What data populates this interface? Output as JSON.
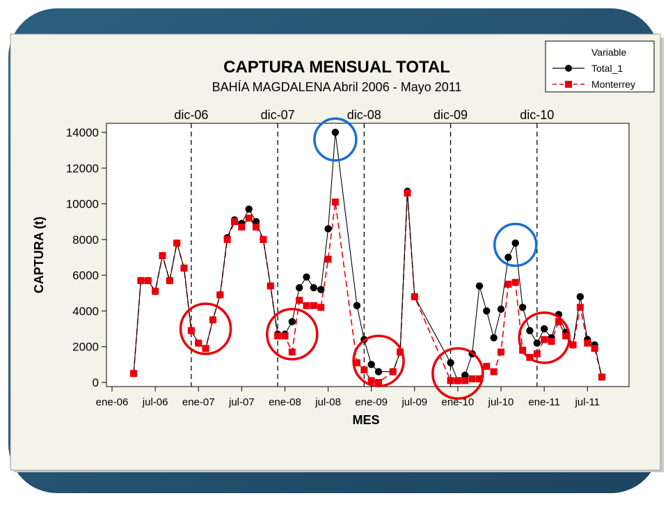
{
  "chart_data": {
    "type": "line",
    "title": "CAPTURA MENSUAL TOTAL",
    "subtitle": "BAHÍA MAGDALENA Abril 2006 - Mayo 2011",
    "xlabel": "MES",
    "ylabel": "CAPTURA (t)",
    "x_range": [
      "2006-01",
      "2011-12"
    ],
    "ylim": [
      0,
      14000
    ],
    "y_ticks": [
      "0",
      "2000",
      "4000",
      "6000",
      "8000",
      "10000",
      "12000",
      "14000"
    ],
    "x_ticks": [
      {
        "label": "ene-06",
        "x": "2006-01"
      },
      {
        "label": "jul-06",
        "x": "2006-07"
      },
      {
        "label": "ene-07",
        "x": "2007-01"
      },
      {
        "label": "jul-07",
        "x": "2007-07"
      },
      {
        "label": "ene-08",
        "x": "2008-01"
      },
      {
        "label": "jul-08",
        "x": "2008-07"
      },
      {
        "label": "ene-09",
        "x": "2009-01"
      },
      {
        "label": "jul-09",
        "x": "2009-07"
      },
      {
        "label": "ene-10",
        "x": "2010-01"
      },
      {
        "label": "jul-10",
        "x": "2010-07"
      },
      {
        "label": "ene-11",
        "x": "2011-01"
      },
      {
        "label": "jul-11",
        "x": "2011-07"
      }
    ],
    "reference_lines": [
      {
        "label": "dic-06",
        "x": "2006-12"
      },
      {
        "label": "dic-07",
        "x": "2007-12"
      },
      {
        "label": "dic-08",
        "x": "2008-12"
      },
      {
        "label": "dic-09",
        "x": "2009-12"
      },
      {
        "label": "dic-10",
        "x": "2010-12"
      }
    ],
    "legend_title": "Variable",
    "legend_position": "top-right",
    "grid": false,
    "series": [
      {
        "name": "Total_1",
        "color": "#000000",
        "marker": "circle",
        "line_style": "solid",
        "points": [
          [
            "2006-04",
            500
          ],
          [
            "2006-05",
            5700
          ],
          [
            "2006-06",
            5700
          ],
          [
            "2006-07",
            5100
          ],
          [
            "2006-08",
            7100
          ],
          [
            "2006-09",
            5700
          ],
          [
            "2006-10",
            7800
          ],
          [
            "2006-11",
            6400
          ],
          [
            "2006-12",
            2900
          ],
          [
            "2007-01",
            2200
          ],
          [
            "2007-02",
            1900
          ],
          [
            "2007-03",
            3500
          ],
          [
            "2007-04",
            4900
          ],
          [
            "2007-05",
            8100
          ],
          [
            "2007-06",
            9100
          ],
          [
            "2007-07",
            8900
          ],
          [
            "2007-08",
            9700
          ],
          [
            "2007-09",
            9000
          ],
          [
            "2007-10",
            8000
          ],
          [
            "2007-11",
            5400
          ],
          [
            "2007-12",
            2700
          ],
          [
            "2008-01",
            2700
          ],
          [
            "2008-02",
            3400
          ],
          [
            "2008-03",
            5300
          ],
          [
            "2008-04",
            5900
          ],
          [
            "2008-05",
            5300
          ],
          [
            "2008-06",
            5200
          ],
          [
            "2008-07",
            8600
          ],
          [
            "2008-08",
            14000
          ],
          [
            "2008-11",
            4300
          ],
          [
            "2008-12",
            2400
          ],
          [
            "2009-01",
            1000
          ],
          [
            "2009-02",
            600
          ],
          [
            "2009-04",
            600
          ],
          [
            "2009-05",
            1700
          ],
          [
            "2009-06",
            10700
          ],
          [
            "2009-07",
            4800
          ],
          [
            "2009-12",
            1100
          ],
          [
            "2010-01",
            100
          ],
          [
            "2010-02",
            400
          ],
          [
            "2010-03",
            1600
          ],
          [
            "2010-04",
            5400
          ],
          [
            "2010-05",
            4000
          ],
          [
            "2010-06",
            2500
          ],
          [
            "2010-07",
            4100
          ],
          [
            "2010-08",
            7000
          ],
          [
            "2010-09",
            7800
          ],
          [
            "2010-10",
            4200
          ],
          [
            "2010-11",
            2900
          ],
          [
            "2010-12",
            2200
          ],
          [
            "2011-01",
            3000
          ],
          [
            "2011-02",
            2500
          ],
          [
            "2011-03",
            3800
          ],
          [
            "2011-04",
            2800
          ],
          [
            "2011-05",
            2100
          ],
          [
            "2011-06",
            4800
          ],
          [
            "2011-07",
            2400
          ],
          [
            "2011-08",
            2100
          ],
          [
            "2011-09",
            300
          ]
        ]
      },
      {
        "name": "Monterrey",
        "color": "#e8000b",
        "marker": "square",
        "line_style": "dashed",
        "points": [
          [
            "2006-04",
            500
          ],
          [
            "2006-05",
            5700
          ],
          [
            "2006-06",
            5700
          ],
          [
            "2006-07",
            5100
          ],
          [
            "2006-08",
            7100
          ],
          [
            "2006-09",
            5700
          ],
          [
            "2006-10",
            7800
          ],
          [
            "2006-11",
            6400
          ],
          [
            "2006-12",
            2900
          ],
          [
            "2007-01",
            2200
          ],
          [
            "2007-02",
            1900
          ],
          [
            "2007-03",
            3500
          ],
          [
            "2007-04",
            4900
          ],
          [
            "2007-05",
            8000
          ],
          [
            "2007-06",
            9000
          ],
          [
            "2007-07",
            8700
          ],
          [
            "2007-08",
            9200
          ],
          [
            "2007-09",
            8700
          ],
          [
            "2007-10",
            8000
          ],
          [
            "2007-11",
            5400
          ],
          [
            "2007-12",
            2600
          ],
          [
            "2008-01",
            2600
          ],
          [
            "2008-02",
            1700
          ],
          [
            "2008-03",
            4600
          ],
          [
            "2008-04",
            4300
          ],
          [
            "2008-05",
            4300
          ],
          [
            "2008-06",
            4200
          ],
          [
            "2008-07",
            6900
          ],
          [
            "2008-08",
            10100
          ],
          [
            "2008-11",
            1100
          ],
          [
            "2008-12",
            700
          ],
          [
            "2009-01",
            100
          ],
          [
            "2009-02",
            0
          ],
          [
            "2009-04",
            600
          ],
          [
            "2009-05",
            1700
          ],
          [
            "2009-06",
            10600
          ],
          [
            "2009-07",
            4800
          ],
          [
            "2009-12",
            100
          ],
          [
            "2010-01",
            100
          ],
          [
            "2010-02",
            100
          ],
          [
            "2010-03",
            200
          ],
          [
            "2010-04",
            200
          ],
          [
            "2010-05",
            900
          ],
          [
            "2010-06",
            600
          ],
          [
            "2010-07",
            1700
          ],
          [
            "2010-08",
            5500
          ],
          [
            "2010-09",
            5600
          ],
          [
            "2010-10",
            1800
          ],
          [
            "2010-11",
            1400
          ],
          [
            "2010-12",
            1600
          ],
          [
            "2011-01",
            2400
          ],
          [
            "2011-02",
            2300
          ],
          [
            "2011-03",
            3400
          ],
          [
            "2011-04",
            2600
          ],
          [
            "2011-05",
            2100
          ],
          [
            "2011-06",
            4200
          ],
          [
            "2011-07",
            2200
          ],
          [
            "2011-08",
            1900
          ],
          [
            "2011-09",
            300
          ]
        ]
      }
    ],
    "annotations": [
      {
        "shape": "circle",
        "color": "#1a6fcf",
        "x": "2008-08",
        "y": 13600
      },
      {
        "shape": "circle",
        "color": "#1a6fcf",
        "x": "2010-09",
        "y": 7700
      },
      {
        "shape": "circle",
        "color": "#e8000b",
        "x": "2007-02",
        "y": 3000
      },
      {
        "shape": "circle",
        "color": "#e8000b",
        "x": "2008-02",
        "y": 2700
      },
      {
        "shape": "circle",
        "color": "#e8000b",
        "x": "2009-02",
        "y": 1200
      },
      {
        "shape": "circle",
        "color": "#e8000b",
        "x": "2010-01",
        "y": 500
      },
      {
        "shape": "circle",
        "color": "#e8000b",
        "x": "2011-01",
        "y": 2500
      }
    ]
  }
}
